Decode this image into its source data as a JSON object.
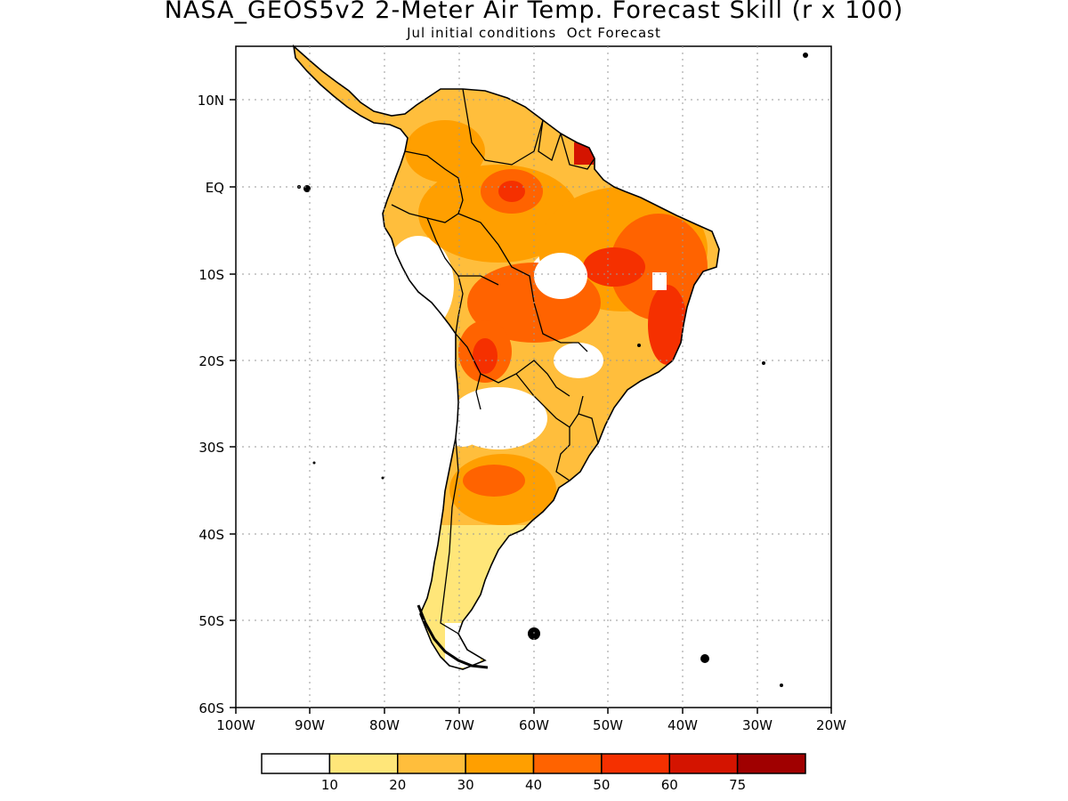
{
  "title": "NASA_GEOS5v2 2-Meter Air Temp. Forecast Skill (r x 100)",
  "subtitle": "Jul initial conditions  Oct Forecast",
  "map": {
    "region": "South America",
    "lon_range": [
      -100,
      -20
    ],
    "lat_range": [
      -60,
      15
    ],
    "grid": "dotted",
    "lat_labels": [
      "10N",
      "EQ",
      "10S",
      "20S",
      "30S",
      "40S",
      "50S",
      "60S"
    ],
    "lon_labels": [
      "100W",
      "90W",
      "80W",
      "70W",
      "60W",
      "50W",
      "40W",
      "30W",
      "20W"
    ]
  },
  "colorbar": {
    "labels": [
      "10",
      "20",
      "30",
      "40",
      "50",
      "60",
      "75"
    ],
    "colors": [
      "#ffffff",
      "#ffe679",
      "#ffbe3c",
      "#ff9f00",
      "#ff6300",
      "#f53000",
      "#d41400",
      "#a00000"
    ]
  }
}
